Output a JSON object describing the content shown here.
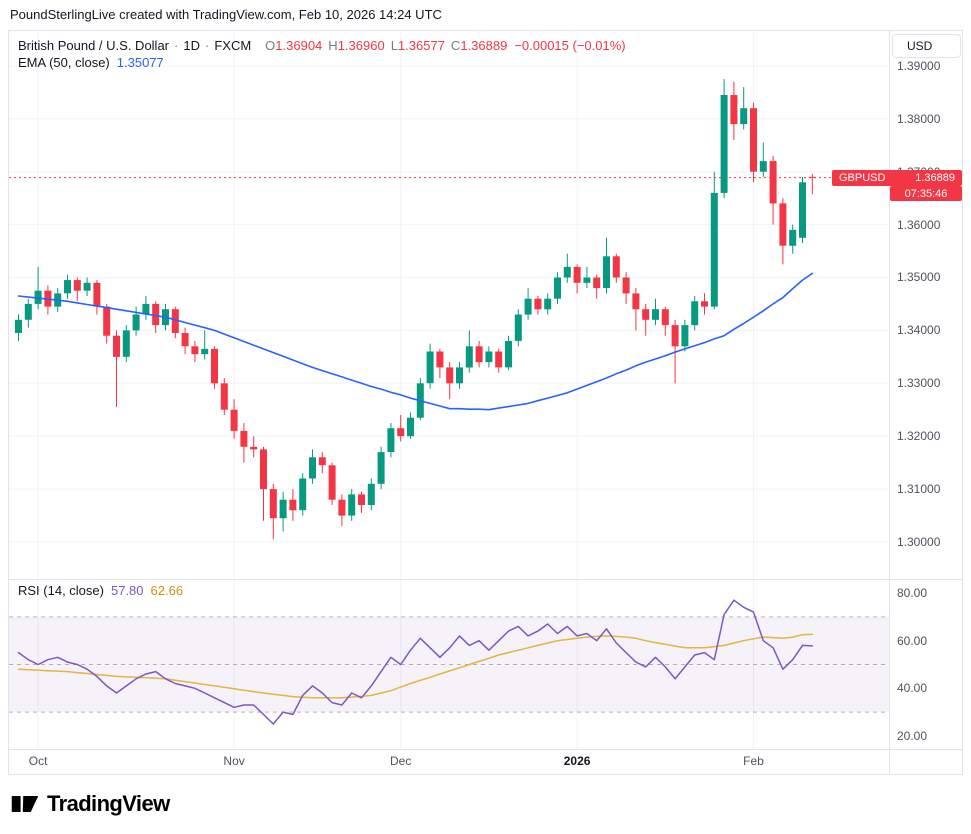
{
  "page": {
    "attribution": "PoundSterlingLive created with TradingView.com, Feb 10, 2026 14:24 UTC"
  },
  "header": {
    "symbol": "British Pound / U.S. Dollar",
    "sep": "·",
    "interval": "1D",
    "exchange": "FXCM",
    "o_label": "O",
    "o_value": "1.36904",
    "h_label": "H",
    "h_value": "1.36960",
    "l_label": "L",
    "l_value": "1.36577",
    "c_label": "C",
    "c_value": "1.36889",
    "change": "−0.00015 (−0.01%)",
    "ema_label": "EMA (50, close)",
    "ema_value": "1.35077"
  },
  "rsi_legend": {
    "label": "RSI (14, close)",
    "value": "57.80",
    "ma_value": "62.66"
  },
  "axis": {
    "currency": "USD",
    "last_price": {
      "symbol": "GBPUSD",
      "price": "1.36889",
      "value": 1.36889,
      "countdown": "07:35:46"
    }
  },
  "footer": {
    "logo_text": "TradingView"
  },
  "colors": {
    "up": "#089981",
    "down": "#f23645",
    "ema": "#2962ff",
    "rsi": "#7e57c2",
    "rsi_ma": "#e8b33f",
    "grid": "#f0f3fa",
    "rsi_band": "rgba(126,87,194,0.08)",
    "rsi_guide": "#787b86"
  },
  "chart_data": [
    {
      "type": "candlestick",
      "title": "British Pound / U.S. Dollar, 1D, FXCM",
      "ylabel": "USD",
      "ylim": [
        1.293,
        1.3966
      ],
      "y_axis": {
        "ticks": [
          {
            "label": "1.39000",
            "value": 1.39
          },
          {
            "label": "1.38000",
            "value": 1.38
          },
          {
            "label": "1.37000",
            "value": 1.37
          },
          {
            "label": "1.36000",
            "value": 1.36
          },
          {
            "label": "1.35000",
            "value": 1.35
          },
          {
            "label": "1.34000",
            "value": 1.34
          },
          {
            "label": "1.33000",
            "value": 1.33
          },
          {
            "label": "1.32000",
            "value": 1.32
          },
          {
            "label": "1.31000",
            "value": 1.31
          },
          {
            "label": "1.30000",
            "value": 1.3
          }
        ]
      },
      "x_axis": {
        "ticks": [
          {
            "label": "Oct",
            "index": 2
          },
          {
            "label": "Nov",
            "index": 22
          },
          {
            "label": "Dec",
            "index": 39
          },
          {
            "label": "2026",
            "index": 57,
            "emphasis": true
          },
          {
            "label": "Feb",
            "index": 75
          }
        ]
      },
      "last_price": 1.36889,
      "candles": [
        [
          1.3395,
          1.343,
          1.338,
          1.342
        ],
        [
          1.342,
          1.346,
          1.3405,
          1.345
        ],
        [
          1.345,
          1.352,
          1.344,
          1.3475
        ],
        [
          1.3475,
          1.3485,
          1.343,
          1.3445
        ],
        [
          1.3445,
          1.348,
          1.3435,
          1.347
        ],
        [
          1.347,
          1.3505,
          1.346,
          1.3495
        ],
        [
          1.3495,
          1.35,
          1.3455,
          1.3475
        ],
        [
          1.3475,
          1.35,
          1.3465,
          1.349
        ],
        [
          1.349,
          1.3495,
          1.343,
          1.3445
        ],
        [
          1.3445,
          1.345,
          1.3375,
          1.339
        ],
        [
          1.339,
          1.34,
          1.3255,
          1.335
        ],
        [
          1.335,
          1.341,
          1.334,
          1.34
        ],
        [
          1.34,
          1.3445,
          1.339,
          1.343
        ],
        [
          1.343,
          1.3465,
          1.342,
          1.345
        ],
        [
          1.345,
          1.3455,
          1.3395,
          1.341
        ],
        [
          1.341,
          1.345,
          1.34,
          1.344
        ],
        [
          1.344,
          1.3445,
          1.3385,
          1.3395
        ],
        [
          1.3395,
          1.3405,
          1.3355,
          1.337
        ],
        [
          1.337,
          1.338,
          1.334,
          1.3355
        ],
        [
          1.3355,
          1.34,
          1.3345,
          1.3365
        ],
        [
          1.3365,
          1.337,
          1.329,
          1.33
        ],
        [
          1.33,
          1.331,
          1.324,
          1.325
        ],
        [
          1.325,
          1.327,
          1.3195,
          1.321
        ],
        [
          1.321,
          1.3225,
          1.315,
          1.318
        ],
        [
          1.318,
          1.32,
          1.316,
          1.3175
        ],
        [
          1.3175,
          1.318,
          1.304,
          1.31
        ],
        [
          1.31,
          1.311,
          1.3005,
          1.3045
        ],
        [
          1.3045,
          1.3095,
          1.302,
          1.308
        ],
        [
          1.308,
          1.31,
          1.304,
          1.306
        ],
        [
          1.306,
          1.313,
          1.305,
          1.312
        ],
        [
          1.312,
          1.3175,
          1.311,
          1.316
        ],
        [
          1.316,
          1.317,
          1.313,
          1.3145
        ],
        [
          1.3145,
          1.315,
          1.307,
          1.308
        ],
        [
          1.308,
          1.309,
          1.303,
          1.305
        ],
        [
          1.305,
          1.31,
          1.304,
          1.309
        ],
        [
          1.309,
          1.3095,
          1.3055,
          1.307
        ],
        [
          1.307,
          1.312,
          1.306,
          1.311
        ],
        [
          1.311,
          1.318,
          1.31,
          1.317
        ],
        [
          1.317,
          1.3225,
          1.316,
          1.3215
        ],
        [
          1.3215,
          1.324,
          1.319,
          1.32
        ],
        [
          1.32,
          1.3245,
          1.3195,
          1.3235
        ],
        [
          1.3235,
          1.331,
          1.323,
          1.33
        ],
        [
          1.33,
          1.3375,
          1.329,
          1.336
        ],
        [
          1.336,
          1.3365,
          1.331,
          1.333
        ],
        [
          1.333,
          1.334,
          1.327,
          1.33
        ],
        [
          1.33,
          1.334,
          1.329,
          1.333
        ],
        [
          1.333,
          1.34,
          1.332,
          1.337
        ],
        [
          1.337,
          1.338,
          1.333,
          1.334
        ],
        [
          1.334,
          1.337,
          1.333,
          1.336
        ],
        [
          1.336,
          1.3365,
          1.332,
          1.333
        ],
        [
          1.333,
          1.339,
          1.3325,
          1.338
        ],
        [
          1.338,
          1.344,
          1.337,
          1.343
        ],
        [
          1.343,
          1.348,
          1.342,
          1.346
        ],
        [
          1.346,
          1.3465,
          1.343,
          1.344
        ],
        [
          1.344,
          1.347,
          1.343,
          1.346
        ],
        [
          1.346,
          1.351,
          1.345,
          1.35
        ],
        [
          1.35,
          1.3545,
          1.349,
          1.352
        ],
        [
          1.352,
          1.3525,
          1.347,
          1.349
        ],
        [
          1.349,
          1.352,
          1.348,
          1.35
        ],
        [
          1.35,
          1.3505,
          1.346,
          1.348
        ],
        [
          1.348,
          1.3575,
          1.347,
          1.354
        ],
        [
          1.354,
          1.3545,
          1.349,
          1.35
        ],
        [
          1.35,
          1.351,
          1.345,
          1.347
        ],
        [
          1.347,
          1.348,
          1.34,
          1.344
        ],
        [
          1.344,
          1.345,
          1.339,
          1.342
        ],
        [
          1.342,
          1.346,
          1.341,
          1.344
        ],
        [
          1.344,
          1.3445,
          1.339,
          1.341
        ],
        [
          1.341,
          1.342,
          1.33,
          1.337
        ],
        [
          1.337,
          1.342,
          1.336,
          1.341
        ],
        [
          1.341,
          1.3465,
          1.34,
          1.3455
        ],
        [
          1.3455,
          1.347,
          1.343,
          1.3445
        ],
        [
          1.3445,
          1.37,
          1.344,
          1.366
        ],
        [
          1.366,
          1.3875,
          1.365,
          1.3845
        ],
        [
          1.3845,
          1.387,
          1.376,
          1.379
        ],
        [
          1.379,
          1.386,
          1.378,
          1.382
        ],
        [
          1.382,
          1.383,
          1.368,
          1.37
        ],
        [
          1.37,
          1.3755,
          1.369,
          1.372
        ],
        [
          1.372,
          1.373,
          1.36,
          1.364
        ],
        [
          1.364,
          1.365,
          1.3525,
          1.356
        ],
        [
          1.356,
          1.36,
          1.3545,
          1.359
        ],
        [
          1.3575,
          1.369,
          1.3565,
          1.368
        ],
        [
          1.36904,
          1.3696,
          1.36577,
          1.36889
        ]
      ],
      "overlays": [
        {
          "name": "EMA (50, close)",
          "color_key": "ema",
          "current": 1.35077,
          "values": [
            1.3465,
            1.3463,
            1.3461,
            1.3459,
            1.3457,
            1.3455,
            1.3452,
            1.3449,
            1.3446,
            1.3443,
            1.344,
            1.3437,
            1.3434,
            1.3431,
            1.3428,
            1.3425,
            1.342,
            1.3415,
            1.341,
            1.3405,
            1.34,
            1.3393,
            1.3386,
            1.3379,
            1.3372,
            1.3365,
            1.3358,
            1.3351,
            1.3344,
            1.3337,
            1.333,
            1.3324,
            1.3318,
            1.3312,
            1.3306,
            1.33,
            1.3294,
            1.3289,
            1.3283,
            1.3278,
            1.3272,
            1.3267,
            1.3262,
            1.3257,
            1.3252,
            1.3252,
            1.3251,
            1.3251,
            1.325,
            1.3253,
            1.3256,
            1.3259,
            1.3262,
            1.3267,
            1.3272,
            1.3277,
            1.3282,
            1.3289,
            1.3296,
            1.3303,
            1.331,
            1.3318,
            1.3325,
            1.3333,
            1.334,
            1.3346,
            1.3352,
            1.3359,
            1.3365,
            1.3371,
            1.3377,
            1.3384,
            1.339,
            1.3402,
            1.3413,
            1.3425,
            1.3437,
            1.345,
            1.3462,
            1.3479,
            1.3495,
            1.35077
          ]
        }
      ]
    },
    {
      "type": "line",
      "title": "RSI (14, close)",
      "ylim": [
        14.5,
        85.9
      ],
      "y_axis": {
        "ticks": [
          {
            "label": "80.00",
            "value": 80
          },
          {
            "label": "60.00",
            "value": 60
          },
          {
            "label": "40.00",
            "value": 40
          },
          {
            "label": "20.00",
            "value": 20
          }
        ]
      },
      "band": [
        30,
        70
      ],
      "guides": [
        70,
        50,
        30
      ],
      "series": [
        {
          "name": "RSI",
          "color_key": "rsi",
          "current": 57.8,
          "values": [
            55,
            52,
            50,
            52,
            53,
            51,
            50,
            48,
            45,
            41,
            38,
            41,
            44,
            46,
            47,
            44,
            42,
            41,
            40,
            38,
            36,
            34,
            32,
            33,
            33,
            29,
            25,
            30,
            29,
            37,
            41,
            38,
            34,
            33,
            38,
            36,
            41,
            47,
            53,
            50,
            56,
            61,
            57,
            53,
            57,
            62,
            58,
            60,
            56,
            60,
            64,
            66,
            62,
            64,
            67,
            63,
            66,
            62,
            63,
            60,
            65,
            59,
            55,
            51,
            49,
            53,
            49,
            44,
            49,
            54,
            55,
            52,
            71,
            77,
            74,
            72,
            60,
            57,
            48,
            52,
            58,
            57.8
          ]
        },
        {
          "name": "RSI-based MA",
          "color_key": "rsi_ma",
          "current": 62.66,
          "values": [
            48,
            47.8,
            47.6,
            47.4,
            47.2,
            47,
            46.6,
            46.2,
            45.8,
            45.4,
            45,
            44.8,
            44.6,
            44.4,
            44.2,
            44,
            43.4,
            42.8,
            42.2,
            41.6,
            41,
            40.4,
            39.8,
            39.2,
            38.6,
            38,
            37.5,
            37,
            36.5,
            36.2,
            36,
            36,
            36,
            36,
            36.3,
            36.6,
            37,
            38,
            39,
            40.5,
            42,
            43.3,
            44.6,
            46,
            47.3,
            48.6,
            50,
            51.3,
            52.6,
            54,
            55,
            56,
            57,
            58,
            59,
            60,
            60.5,
            61,
            61.5,
            61.8,
            62,
            61.8,
            61.5,
            61,
            60,
            59.2,
            58.5,
            57.7,
            57,
            57,
            57,
            57.5,
            58,
            59,
            60,
            60.8,
            61.5,
            61.3,
            61,
            61.5,
            62.5,
            62.66
          ]
        }
      ]
    }
  ]
}
